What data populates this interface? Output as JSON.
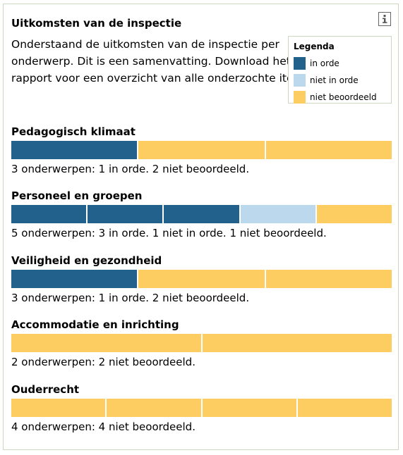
{
  "header": {
    "title": "Uitkomsten van de inspectie",
    "info_icon": "info-icon"
  },
  "intro": {
    "lines": [
      "Onderstaand de uitkomsten van de inspectie per",
      "onderwerp. Dit is een samenvatting. Download het",
      "rapport voor een overzicht van alle onderzochte items."
    ]
  },
  "legend": {
    "title": "Legenda",
    "items": [
      {
        "label": "in orde",
        "color": "#21618c"
      },
      {
        "label": "niet in orde",
        "color": "#bcd8ec"
      },
      {
        "label": "niet beoordeeld",
        "color": "#fecd62"
      }
    ]
  },
  "sections": [
    {
      "title": "Pedagogisch klimaat",
      "segments": [
        "in orde",
        "niet beoordeeld",
        "niet beoordeeld"
      ],
      "summary": "3 onderwerpen: 1 in orde. 2 niet beoordeeld."
    },
    {
      "title": "Personeel en groepen",
      "segments": [
        "in orde",
        "in orde",
        "in orde",
        "niet in orde",
        "niet beoordeeld"
      ],
      "summary": "5 onderwerpen: 3 in orde. 1 niet in orde. 1 niet beoordeeld."
    },
    {
      "title": "Veiligheid en gezondheid",
      "segments": [
        "in orde",
        "niet beoordeeld",
        "niet beoordeeld"
      ],
      "summary": "3 onderwerpen: 1 in orde. 2 niet beoordeeld."
    },
    {
      "title": "Accommodatie en inrichting",
      "segments": [
        "niet beoordeeld",
        "niet beoordeeld"
      ],
      "summary": "2 onderwerpen: 2 niet beoordeeld."
    },
    {
      "title": "Ouderrecht",
      "segments": [
        "niet beoordeeld",
        "niet beoordeeld",
        "niet beoordeeld",
        "niet beoordeeld"
      ],
      "summary": "4 onderwerpen: 4 niet beoordeeld."
    }
  ]
}
